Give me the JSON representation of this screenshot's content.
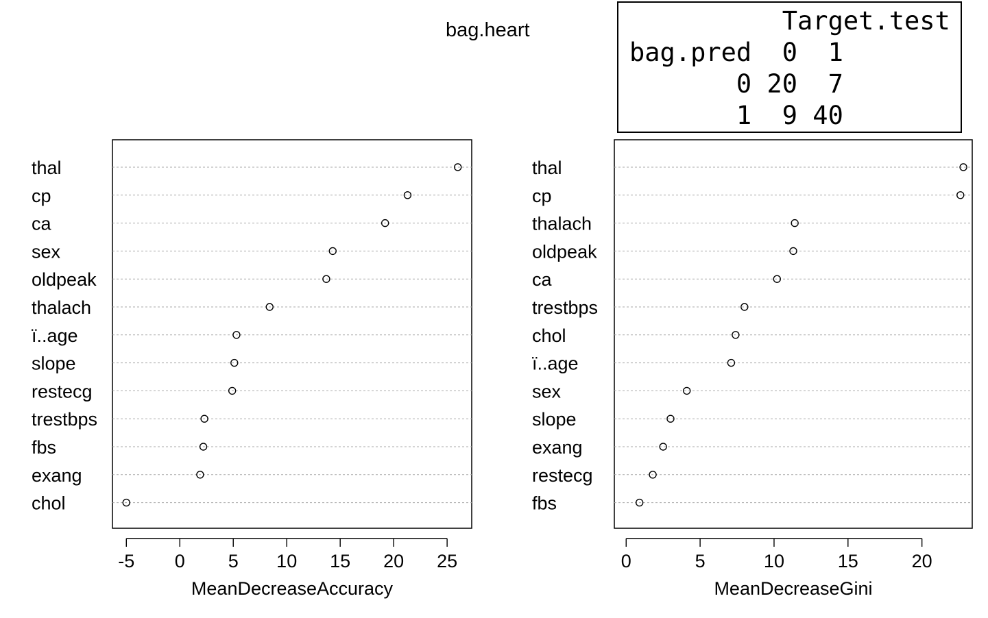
{
  "title": "bag.heart",
  "confusion_matrix": {
    "lines": [
      "          Target.test",
      "bag.pred  0  1",
      "       0 20  7",
      "       1  9 40"
    ]
  },
  "chart_data": [
    {
      "type": "scatter",
      "xlabel": "MeanDecreaseAccuracy",
      "xlim": [
        -6.3,
        27.3
      ],
      "xticks": [
        -5,
        0,
        5,
        10,
        15,
        20,
        25
      ],
      "categories": [
        "thal",
        "cp",
        "ca",
        "sex",
        "oldpeak",
        "thalach",
        "ï..age",
        "slope",
        "restecg",
        "trestbps",
        "fbs",
        "exang",
        "chol"
      ],
      "values": [
        26.0,
        21.3,
        19.2,
        14.3,
        13.7,
        8.4,
        5.3,
        5.1,
        4.9,
        2.3,
        2.2,
        1.9,
        -5.0
      ],
      "grid": true
    },
    {
      "type": "scatter",
      "xlabel": "MeanDecreaseGini",
      "xlim": [
        -0.8,
        23.4
      ],
      "xticks": [
        0,
        5,
        10,
        15,
        20
      ],
      "categories": [
        "thal",
        "cp",
        "thalach",
        "oldpeak",
        "ca",
        "trestbps",
        "chol",
        "ï..age",
        "sex",
        "slope",
        "exang",
        "restecg",
        "fbs"
      ],
      "values": [
        22.8,
        22.6,
        11.4,
        11.3,
        10.2,
        8.0,
        7.4,
        7.1,
        4.1,
        3.0,
        2.5,
        1.8,
        0.9
      ],
      "grid": true
    }
  ]
}
